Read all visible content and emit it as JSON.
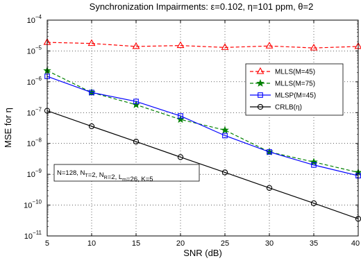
{
  "chart_data": {
    "type": "line",
    "title": "Synchronization Impairments: ε=0.102, η=101 ppm, θ=2",
    "xlabel": "SNR (dB)",
    "ylabel": "MSE for η",
    "xlim": [
      5,
      40
    ],
    "ylim": [
      1e-11,
      0.0001
    ],
    "yscale": "log",
    "grid": "dotted",
    "xticks": [
      "5",
      "10",
      "15",
      "20",
      "25",
      "30",
      "35",
      "40"
    ],
    "yticks": [
      {
        "base": "10",
        "exp": "−11"
      },
      {
        "base": "10",
        "exp": "−10"
      },
      {
        "base": "10",
        "exp": "−9"
      },
      {
        "base": "10",
        "exp": "−8"
      },
      {
        "base": "10",
        "exp": "−7"
      },
      {
        "base": "10",
        "exp": "−6"
      },
      {
        "base": "10",
        "exp": "−5"
      },
      {
        "base": "10",
        "exp": "−4"
      }
    ],
    "legend_position": "right",
    "series": [
      {
        "name": "MLLS(M=45)",
        "color": "#ff0000",
        "line": "dashed",
        "marker": "triangle",
        "x": [
          5,
          10,
          15,
          20,
          25,
          30,
          35,
          40
        ],
        "y": [
          1.9e-05,
          1.75e-05,
          1.4e-05,
          1.5e-05,
          1.3e-05,
          1.45e-05,
          1.25e-05,
          1.4e-05
        ]
      },
      {
        "name": "MLLS(M=75)",
        "color": "#008000",
        "line": "dashed",
        "marker": "star",
        "x": [
          5,
          10,
          15,
          20,
          25,
          30,
          35,
          40
        ],
        "y": [
          2.3e-06,
          4.5e-07,
          1.8e-07,
          6e-08,
          2.7e-08,
          5.3e-09,
          2.5e-09,
          1.15e-09
        ]
      },
      {
        "name": "MLSP(M=45)",
        "color": "#0000ff",
        "line": "solid",
        "marker": "square",
        "x": [
          5,
          10,
          15,
          20,
          25,
          30,
          35,
          40
        ],
        "y": [
          1.5e-06,
          4.5e-07,
          2.3e-07,
          7.8e-08,
          1.8e-08,
          5.3e-09,
          2e-09,
          9e-10
        ]
      },
      {
        "name": "CRLB(η)",
        "color": "#000000",
        "line": "solid",
        "marker": "circle",
        "x": [
          5,
          10,
          15,
          20,
          25,
          30,
          35,
          40
        ],
        "y": [
          1.15e-07,
          3.6e-08,
          1.15e-08,
          3.6e-09,
          1.15e-09,
          3.6e-10,
          1.15e-10,
          3.6e-11
        ]
      }
    ],
    "annotation": [
      {
        "t": "N=128, N",
        "s": ""
      },
      {
        "t": "T",
        "s": "sub"
      },
      {
        "t": "=2, N",
        "s": ""
      },
      {
        "t": "R",
        "s": "sub"
      },
      {
        "t": "=2, L",
        "s": ""
      },
      {
        "t": "m",
        "s": "sub"
      },
      {
        "t": "=26, K=5",
        "s": ""
      }
    ]
  }
}
